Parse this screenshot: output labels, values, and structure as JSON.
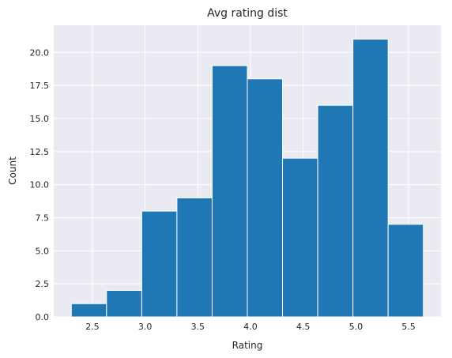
{
  "chart_data": {
    "type": "bar",
    "title": "Avg rating dist",
    "xlabel": "Rating",
    "ylabel": "Count",
    "bin_edges": [
      2.3,
      2.634,
      2.968,
      3.302,
      3.636,
      3.97,
      4.304,
      4.638,
      4.972,
      5.306,
      5.64
    ],
    "values": [
      1,
      2,
      8,
      9,
      19,
      18,
      12,
      16,
      21,
      7
    ],
    "xlim": [
      2.133,
      5.807
    ],
    "ylim": [
      0,
      22.05
    ],
    "xticks": [
      2.5,
      3.0,
      3.5,
      4.0,
      4.5,
      5.0,
      5.5
    ],
    "xtick_labels": [
      "2.5",
      "3.0",
      "3.5",
      "4.0",
      "4.5",
      "5.0",
      "5.5"
    ],
    "yticks": [
      0,
      2.5,
      5,
      7.5,
      10,
      12.5,
      15,
      17.5,
      20
    ],
    "ytick_labels": [
      "0.0",
      "2.5",
      "5.0",
      "7.5",
      "10.0",
      "12.5",
      "15.0",
      "17.5",
      "20.0"
    ],
    "grid": true,
    "colors": {
      "bar": "#1f77b4",
      "background": "#eaeaf2",
      "grid": "#ffffff"
    }
  }
}
